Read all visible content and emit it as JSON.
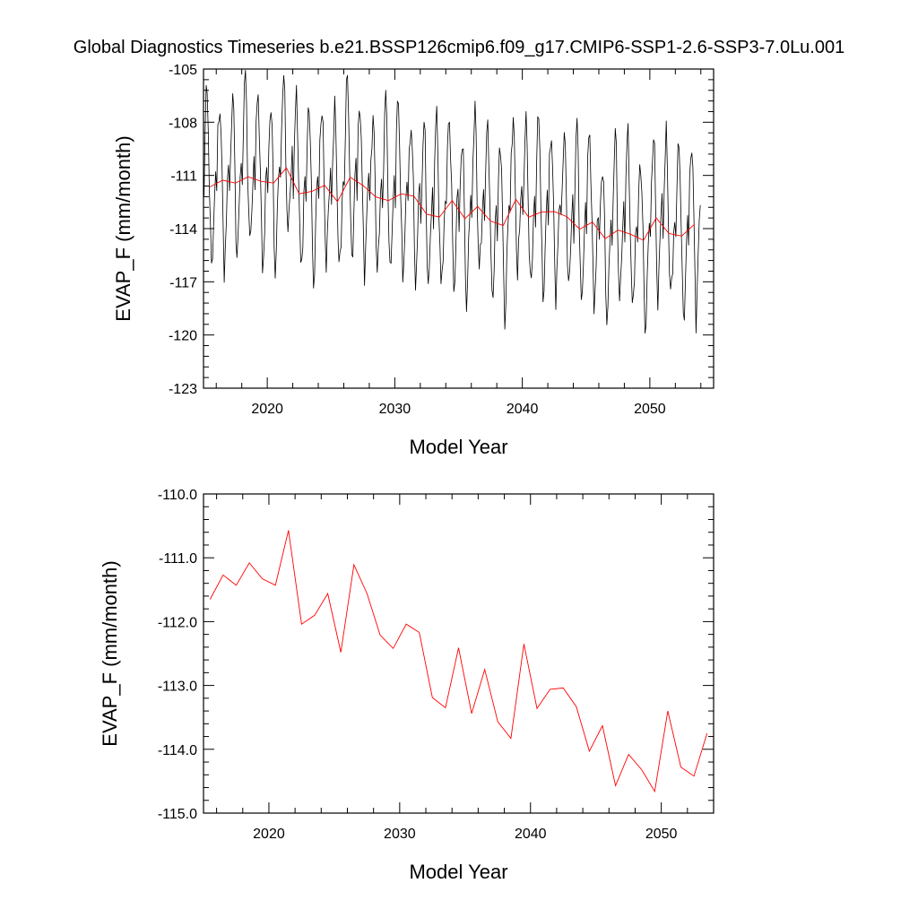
{
  "title": "Global Diagnostics Timeseries b.e21.BSSP126cmip6.f09_g17.CMIP6-SSP1-2.6-SSP3-7.0Lu.001",
  "colors": {
    "monthly": "#000000",
    "annual": "#ff0000",
    "axis": "#000000"
  },
  "chart_data": [
    {
      "type": "line",
      "xlabel": "Model Year",
      "ylabel": "EVAP_F (mm/month)",
      "xlim": [
        2015,
        2055
      ],
      "ylim": [
        -123,
        -105
      ],
      "xticks": [
        2020,
        2030,
        2040,
        2050
      ],
      "yticks": [
        -123,
        -120,
        -117,
        -114,
        -111,
        -108,
        -105
      ],
      "ytick_labels": [
        "-123",
        "-120",
        "-117",
        "-114",
        "-111",
        "-108",
        "-105"
      ],
      "grid": false,
      "series": [
        {
          "style": "monthly",
          "pattern": [
            -113.0,
            -110.0,
            -108.3,
            -107.5,
            -109.0,
            -112.0,
            -115.0,
            -117.0,
            -116.0,
            -114.5,
            -112.5,
            -111.5
          ],
          "annual_means": [
            -111.65,
            -111.27,
            -111.43,
            -111.08,
            -111.33,
            -111.43,
            -110.57,
            -112.04,
            -111.9,
            -111.56,
            -112.48,
            -111.11,
            -111.56,
            -112.21,
            -112.42,
            -112.04,
            -112.17,
            -113.19,
            -113.35,
            -112.41,
            -113.44,
            -112.75,
            -113.57,
            -113.83,
            -112.35,
            -113.36,
            -113.06,
            -113.04,
            -113.33,
            -114.03,
            -113.63,
            -114.57,
            -114.08,
            -114.32,
            -114.66,
            -113.4,
            -114.28,
            -114.42,
            -113.75
          ]
        },
        {
          "style": "annual",
          "x": [
            2015.5,
            2016.5,
            2017.5,
            2018.5,
            2019.5,
            2020.5,
            2021.5,
            2022.5,
            2023.5,
            2024.5,
            2025.5,
            2026.5,
            2027.5,
            2028.5,
            2029.5,
            2030.5,
            2031.5,
            2032.5,
            2033.5,
            2034.5,
            2035.5,
            2036.5,
            2037.5,
            2038.5,
            2039.5,
            2040.5,
            2041.5,
            2042.5,
            2043.5,
            2044.5,
            2045.5,
            2046.5,
            2047.5,
            2048.5,
            2049.5,
            2050.5,
            2051.5,
            2052.5,
            2053.5
          ],
          "y": [
            -111.65,
            -111.27,
            -111.43,
            -111.08,
            -111.33,
            -111.43,
            -110.57,
            -112.04,
            -111.9,
            -111.56,
            -112.48,
            -111.11,
            -111.56,
            -112.21,
            -112.42,
            -112.04,
            -112.17,
            -113.19,
            -113.35,
            -112.41,
            -113.44,
            -112.75,
            -113.57,
            -113.83,
            -112.35,
            -113.36,
            -113.06,
            -113.04,
            -113.33,
            -114.03,
            -113.63,
            -114.57,
            -114.08,
            -114.32,
            -114.66,
            -113.4,
            -114.28,
            -114.42,
            -113.75
          ]
        }
      ]
    },
    {
      "type": "line",
      "xlabel": "Model Year",
      "ylabel": "EVAP_F (mm/month)",
      "xlim": [
        2015,
        2054
      ],
      "ylim": [
        -115,
        -110
      ],
      "xticks": [
        2020,
        2030,
        2040,
        2050
      ],
      "yticks": [
        -115,
        -114,
        -113,
        -112,
        -111,
        -110
      ],
      "ytick_labels": [
        "-115.0",
        "-114.0",
        "-113.0",
        "-112.0",
        "-111.0",
        "-110.0"
      ],
      "grid": false,
      "series": [
        {
          "style": "annual",
          "x": [
            2015.5,
            2016.5,
            2017.5,
            2018.5,
            2019.5,
            2020.5,
            2021.5,
            2022.5,
            2023.5,
            2024.5,
            2025.5,
            2026.5,
            2027.5,
            2028.5,
            2029.5,
            2030.5,
            2031.5,
            2032.5,
            2033.5,
            2034.5,
            2035.5,
            2036.5,
            2037.5,
            2038.5,
            2039.5,
            2040.5,
            2041.5,
            2042.5,
            2043.5,
            2044.5,
            2045.5,
            2046.5,
            2047.5,
            2048.5,
            2049.5,
            2050.5,
            2051.5,
            2052.5,
            2053.5
          ],
          "y": [
            -111.65,
            -111.27,
            -111.43,
            -111.08,
            -111.33,
            -111.43,
            -110.57,
            -112.04,
            -111.9,
            -111.56,
            -112.48,
            -111.11,
            -111.56,
            -112.21,
            -112.42,
            -112.04,
            -112.17,
            -113.19,
            -113.35,
            -112.41,
            -113.44,
            -112.75,
            -113.57,
            -113.83,
            -112.35,
            -113.36,
            -113.06,
            -113.04,
            -113.33,
            -114.03,
            -113.63,
            -114.57,
            -114.08,
            -114.32,
            -114.66,
            -113.4,
            -114.28,
            -114.42,
            -113.75
          ]
        }
      ]
    }
  ]
}
